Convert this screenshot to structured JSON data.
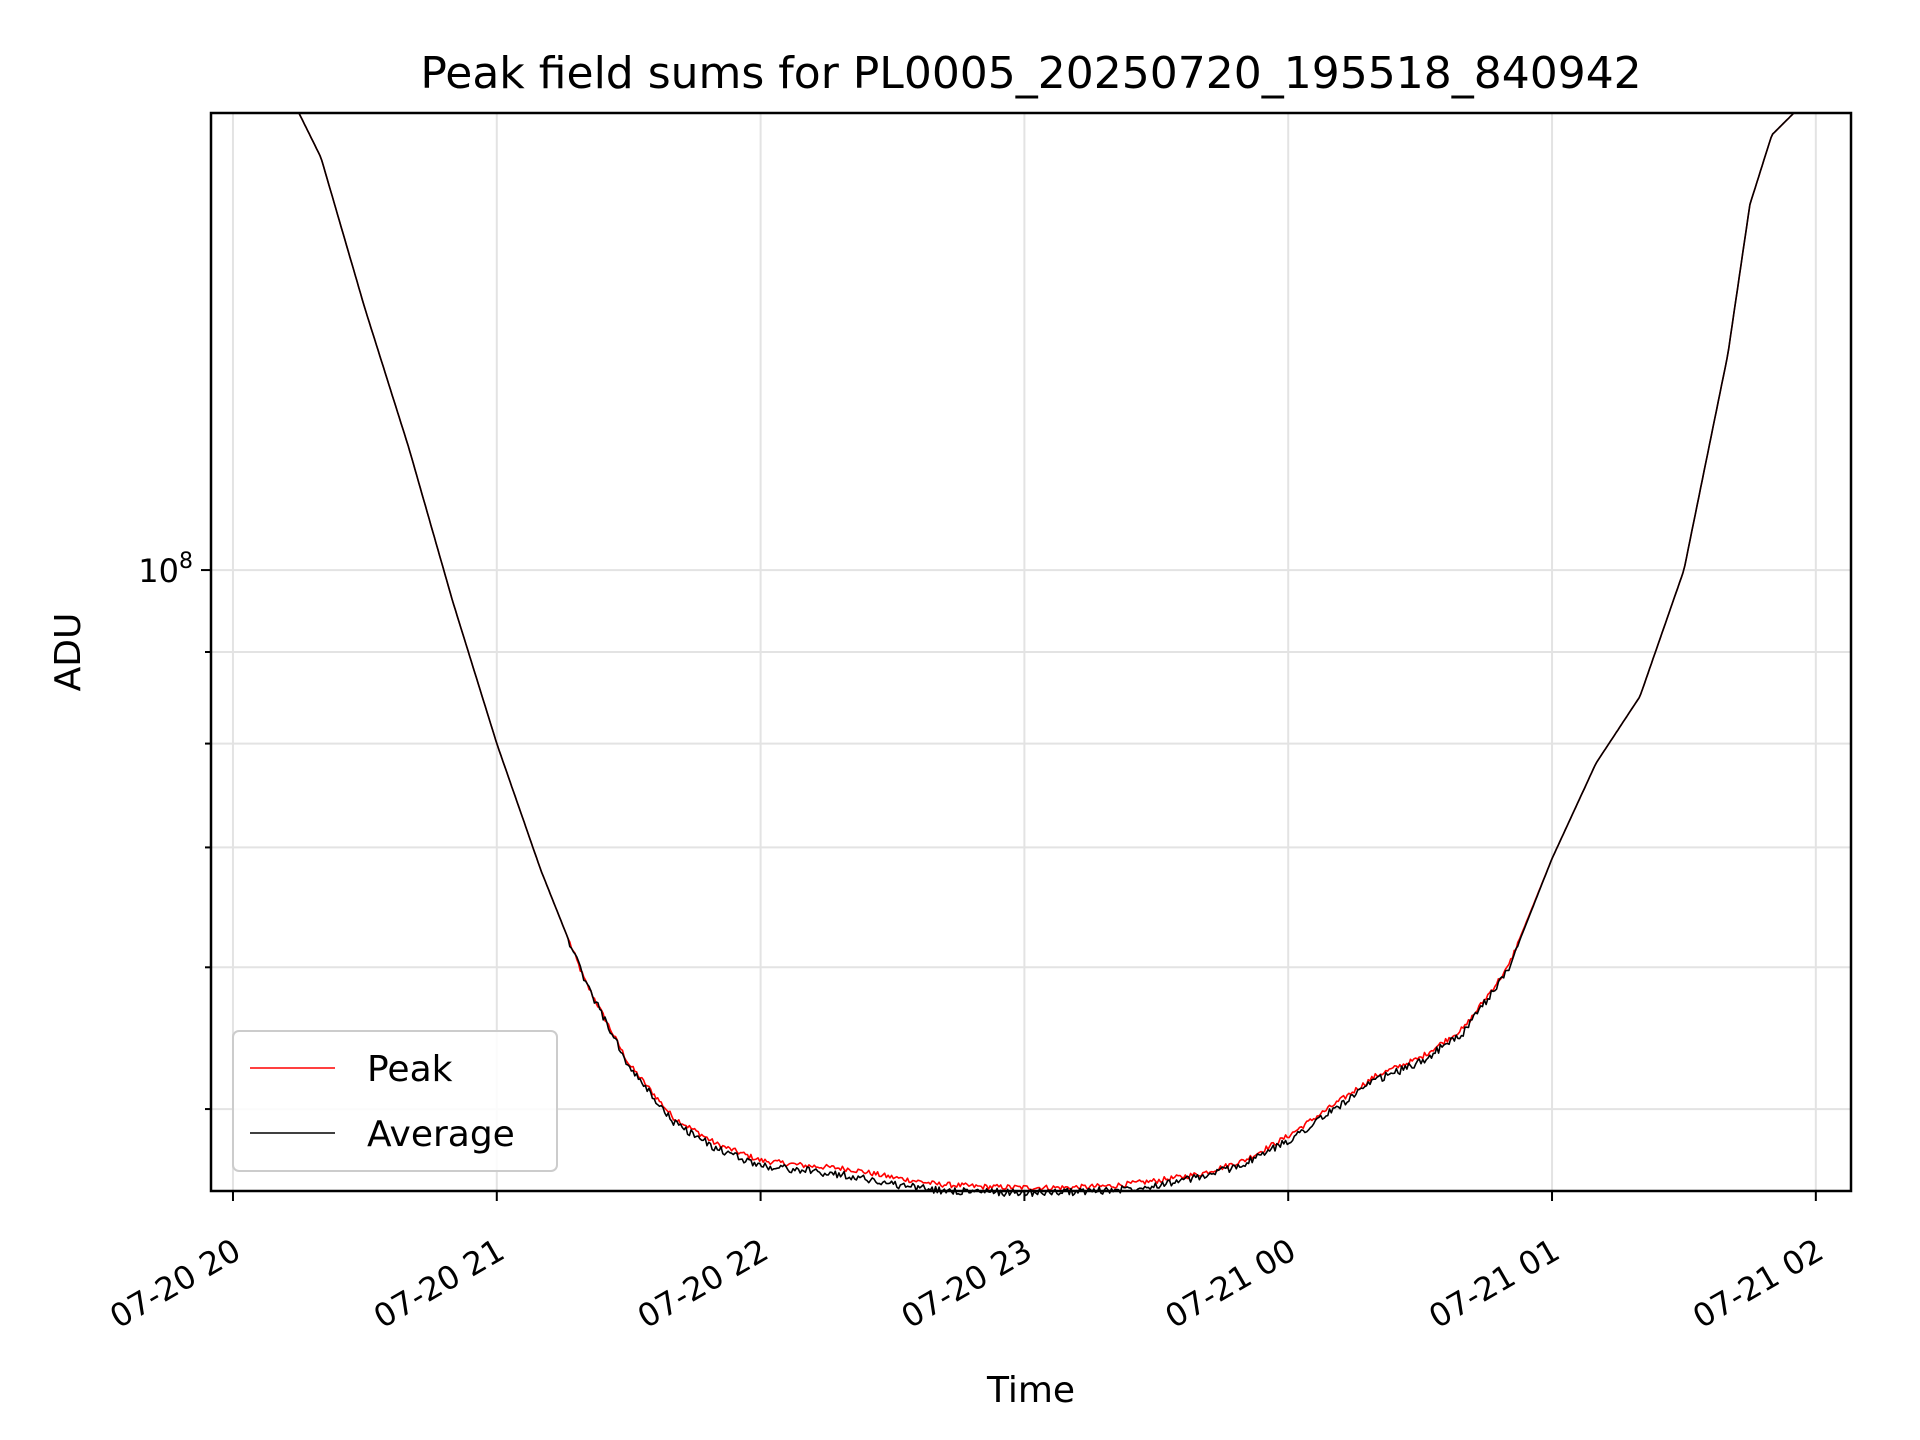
{
  "chart_data": {
    "type": "line",
    "title": "Peak field sums for PL0005_20250720_195518_840942",
    "xlabel": "Time",
    "ylabel": "ADU",
    "yscale": "log",
    "ylim": [
      45000000,
      180000000
    ],
    "xlim": [
      "2025-07-20 19:55",
      "2025-07-21 02:08"
    ],
    "x_ticks": [
      "07-20 20",
      "07-20 21",
      "07-20 22",
      "07-20 23",
      "07-21 00",
      "07-21 01",
      "07-21 02"
    ],
    "y_ticks": [
      {
        "base": "10",
        "exp": "8"
      }
    ],
    "grid": true,
    "legend_position": "lower-left",
    "x": [
      "2025-07-20 19:55",
      "2025-07-20 20:15",
      "2025-07-20 20:20",
      "2025-07-20 20:30",
      "2025-07-20 20:40",
      "2025-07-20 20:50",
      "2025-07-20 21:00",
      "2025-07-20 21:10",
      "2025-07-20 21:20",
      "2025-07-20 21:30",
      "2025-07-20 21:40",
      "2025-07-20 21:50",
      "2025-07-20 22:00",
      "2025-07-20 22:10",
      "2025-07-20 22:20",
      "2025-07-20 22:30",
      "2025-07-20 22:40",
      "2025-07-20 22:50",
      "2025-07-20 23:00",
      "2025-07-20 23:10",
      "2025-07-20 23:20",
      "2025-07-20 23:30",
      "2025-07-20 23:40",
      "2025-07-20 23:50",
      "2025-07-21 00:00",
      "2025-07-21 00:10",
      "2025-07-21 00:20",
      "2025-07-21 00:30",
      "2025-07-21 00:40",
      "2025-07-21 00:50",
      "2025-07-21 01:00",
      "2025-07-21 01:10",
      "2025-07-21 01:20",
      "2025-07-21 01:30",
      "2025-07-21 01:40",
      "2025-07-21 01:45",
      "2025-07-21 01:50",
      "2025-07-21 01:55"
    ],
    "series": [
      {
        "name": "Peak",
        "color": "#ff0000",
        "values": [
          180000000,
          180000000,
          170000000,
          140000000,
          117000000,
          96000000,
          80000000,
          68000000,
          59000000,
          53000000,
          49500000,
          47800000,
          46800000,
          46500000,
          46300000,
          45800000,
          45400000,
          45250000,
          45200000,
          45200000,
          45300000,
          45600000,
          46000000,
          46800000,
          48300000,
          50200000,
          52200000,
          53400000,
          55500000,
          60000000,
          69000000,
          78000000,
          85000000,
          100000000,
          132000000,
          160000000,
          175000000,
          180000000
        ]
      },
      {
        "name": "Average",
        "color": "#000000",
        "values": [
          180000000,
          180000000,
          170000000,
          140000000,
          117000000,
          96000000,
          80000000,
          68000000,
          59000000,
          52800000,
          49200000,
          47500000,
          46500000,
          46200000,
          45900000,
          45400000,
          45050000,
          44950000,
          44900000,
          44950000,
          45050000,
          45350000,
          45800000,
          46600000,
          48000000,
          49900000,
          51900000,
          53100000,
          55200000,
          59800000,
          69000000,
          78000000,
          85000000,
          100000000,
          132000000,
          160000000,
          175000000,
          180000000
        ]
      }
    ]
  }
}
